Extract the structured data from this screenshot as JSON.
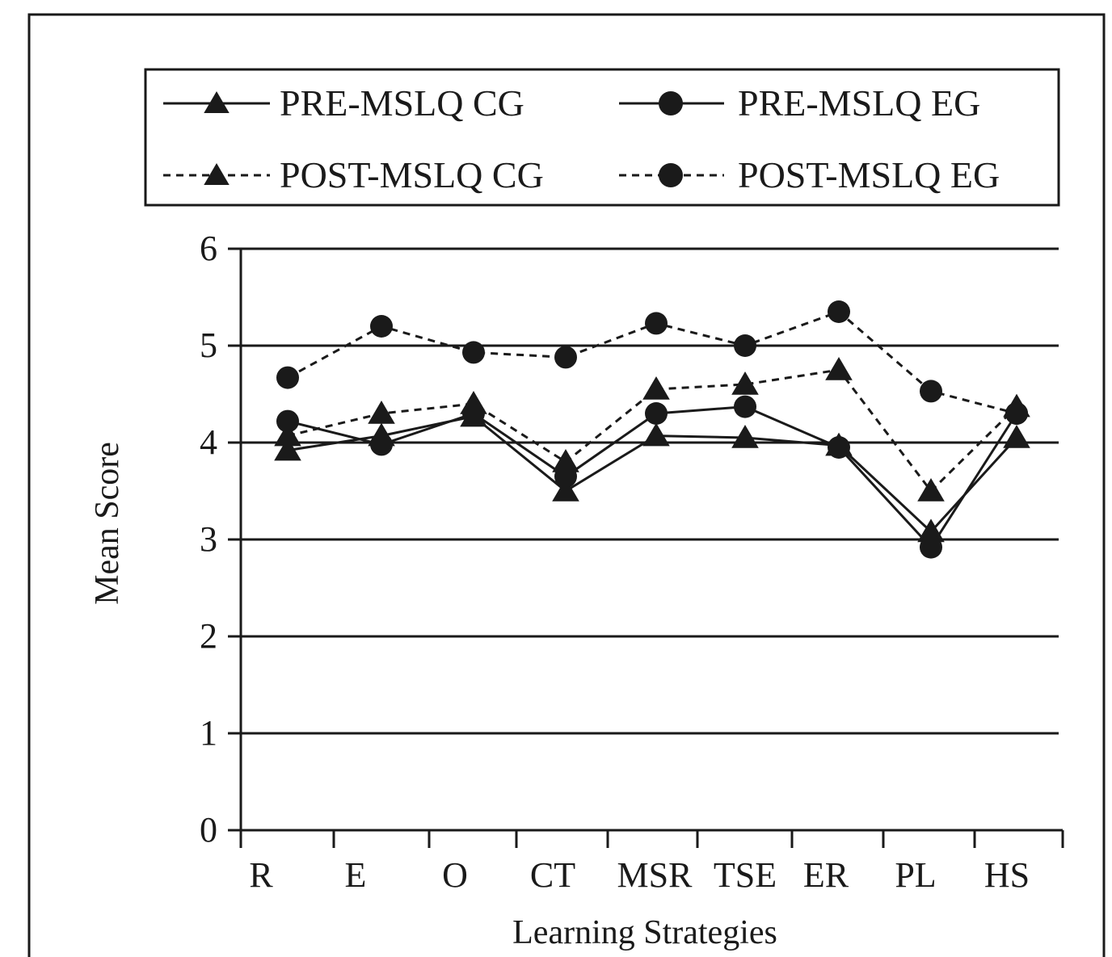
{
  "chart_data": {
    "type": "line",
    "xlabel": "Learning Strategies",
    "ylabel": "Mean Score",
    "ylim": [
      0,
      6
    ],
    "yticks": [
      "0",
      "1",
      "2",
      "3",
      "4",
      "5",
      "6"
    ],
    "categories": [
      "R",
      "E",
      "O",
      "CT",
      "MSR",
      "TSE",
      "ER",
      "PL",
      "HS"
    ],
    "grid": "horizontal",
    "legend_placement": "top",
    "series": [
      {
        "name": "PRE-MSLQ CG",
        "line_style": "solid",
        "marker": "triangle",
        "values": [
          3.92,
          4.07,
          4.27,
          3.5,
          4.07,
          4.05,
          3.97,
          3.08,
          4.05
        ]
      },
      {
        "name": "PRE-MSLQ EG",
        "line_style": "solid",
        "marker": "circle",
        "values": [
          4.22,
          3.98,
          4.3,
          3.65,
          4.3,
          4.37,
          3.95,
          2.92,
          4.3
        ]
      },
      {
        "name": "POST-MSLQ CG",
        "line_style": "dashed",
        "marker": "triangle",
        "values": [
          4.07,
          4.3,
          4.4,
          3.8,
          4.55,
          4.6,
          4.75,
          3.5,
          4.37
        ]
      },
      {
        "name": "POST-MSLQ EG",
        "line_style": "dashed",
        "marker": "circle",
        "values": [
          4.67,
          5.2,
          4.93,
          4.88,
          5.23,
          5.0,
          5.35,
          4.53,
          4.3
        ]
      }
    ],
    "colors": {
      "ink": "#1a1a1a",
      "background": "#ffffff"
    }
  }
}
